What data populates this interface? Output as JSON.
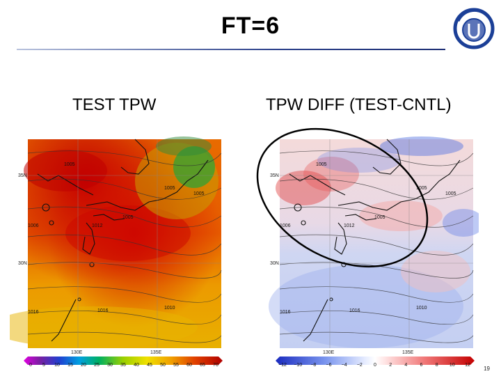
{
  "slide": {
    "title": "FT=6",
    "page_number": "19"
  },
  "left_panel": {
    "label": "TEST TPW",
    "lat_labels": [
      "35N",
      "30N"
    ],
    "lon_labels": [
      "130E",
      "135E"
    ],
    "isobar_labels": [
      "1005",
      "1005",
      "1005",
      "1006",
      "1012",
      "1005",
      "1016",
      "1016",
      "1010"
    ],
    "colorbar_ticks": [
      "0",
      "5",
      "10",
      "15",
      "20",
      "25",
      "30",
      "35",
      "40",
      "45",
      "50",
      "55",
      "60",
      "65",
      "70"
    ],
    "colors": {
      "low": "#7a1fa2",
      "mid": "#e3a200",
      "high": "#c40000"
    }
  },
  "right_panel": {
    "label": "TPW DIFF (TEST-CNTL)",
    "lat_labels": [
      "35N",
      "30N"
    ],
    "lon_labels": [
      "130E",
      "135E"
    ],
    "isobar_labels": [
      "1005",
      "1005",
      "1005",
      "1006",
      "1012",
      "1005",
      "1016",
      "1016",
      "1010"
    ],
    "colorbar_ticks": [
      "−12",
      "−10",
      "−8",
      "−6",
      "−4",
      "−2",
      "0",
      "2",
      "4",
      "6",
      "8",
      "10",
      "12"
    ],
    "colors": {
      "neg": "#2b3fc9",
      "zero": "#ffffff",
      "pos": "#d21a1a"
    }
  },
  "annotation": {
    "shape": "ellipse",
    "color": "#000000"
  },
  "logo": {
    "icon": "agency-logo-icon",
    "color": "#1b3f97"
  }
}
